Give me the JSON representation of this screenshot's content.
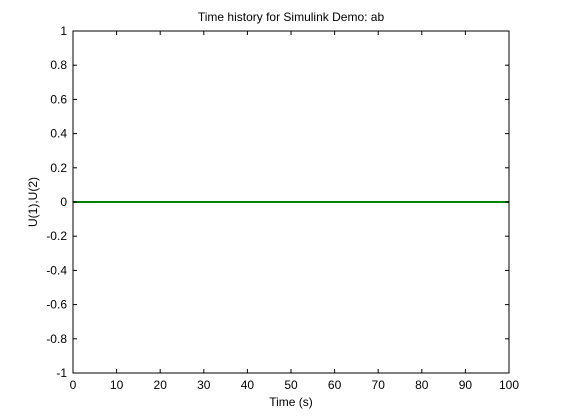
{
  "chart_data": {
    "type": "line",
    "title": "Time history for Simulink Demo: ab",
    "xlabel": "Time (s)",
    "ylabel": "U(1),U(2)",
    "xlim": [
      0,
      100
    ],
    "ylim": [
      -1,
      1
    ],
    "xticks": [
      0,
      10,
      20,
      30,
      40,
      50,
      60,
      70,
      80,
      90,
      100
    ],
    "yticks": [
      -1,
      -0.8,
      -0.6,
      -0.4,
      -0.2,
      0,
      0.2,
      0.4,
      0.6,
      0.8,
      1
    ],
    "xtick_labels": [
      "0",
      "10",
      "20",
      "30",
      "40",
      "50",
      "60",
      "70",
      "80",
      "90",
      "100"
    ],
    "ytick_labels": [
      "-1",
      "-0.8",
      "-0.6",
      "-0.4",
      "-0.2",
      "0",
      "0.2",
      "0.4",
      "0.6",
      "0.8",
      "1"
    ],
    "grid": false,
    "legend": "none",
    "series": [
      {
        "color": "#0000ff",
        "x": [
          0,
          100
        ],
        "y": [
          0,
          0
        ]
      },
      {
        "color": "#008000",
        "x": [
          0,
          100
        ],
        "y": [
          0,
          0
        ]
      }
    ]
  }
}
